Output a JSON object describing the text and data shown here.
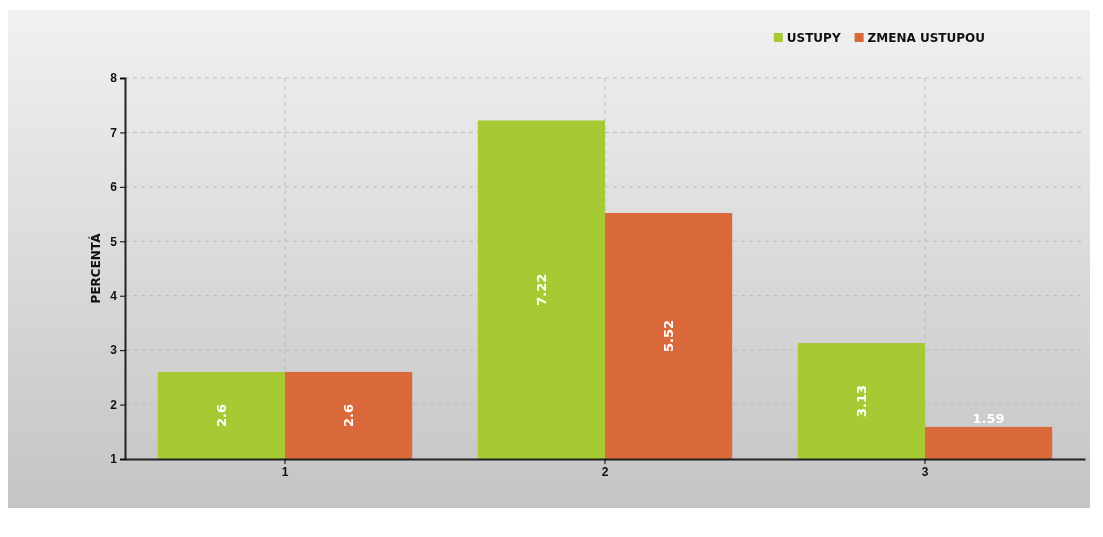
{
  "chart_data": {
    "type": "bar",
    "ylabel": "PERCENTÁ",
    "categories": [
      "1",
      "2",
      "3"
    ],
    "series": [
      {
        "name": "USTUPY",
        "color": "#a6c934",
        "values": [
          2.6,
          7.22,
          3.13
        ]
      },
      {
        "name": "ZMENA USTUPOU",
        "color": "#d9683a",
        "values": [
          2.6,
          5.52,
          1.59
        ]
      }
    ],
    "ylim": [
      1,
      8
    ],
    "yticks": [
      1,
      2,
      3,
      4,
      5,
      6,
      7,
      8
    ],
    "grid": true,
    "legend": "top right",
    "data_labels": true
  }
}
